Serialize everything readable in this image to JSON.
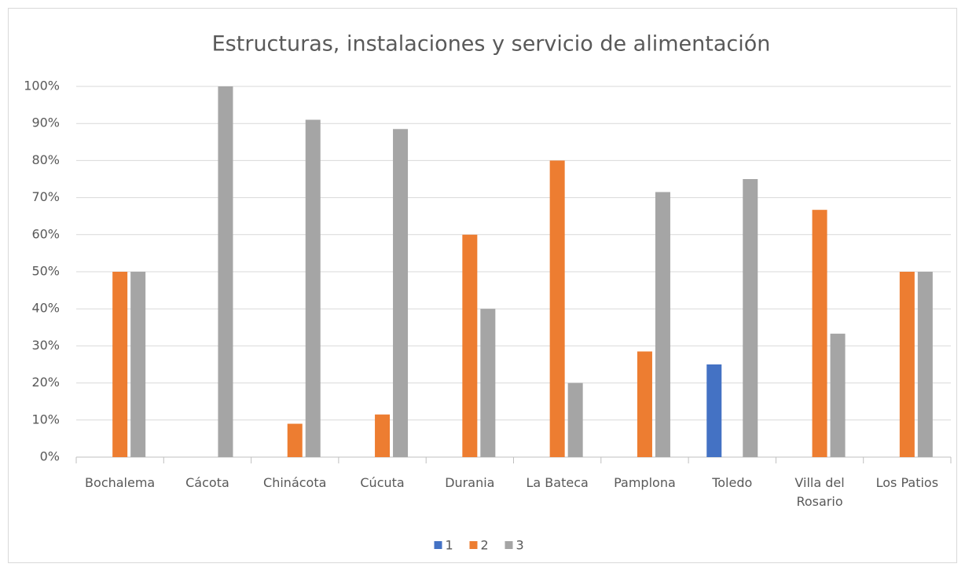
{
  "chart_data": {
    "type": "bar",
    "title": "Estructuras, instalaciones y servicio de alimentación",
    "categories": [
      "Bochalema",
      "Cácota",
      "Chinácota",
      "Cúcuta",
      "Durania",
      "La Bateca",
      "Pamplona",
      "Toledo",
      "Villa del Rosario",
      "Los Patios"
    ],
    "series": [
      {
        "name": "1",
        "color": "#4472c4",
        "values": [
          0,
          0,
          0,
          0,
          0,
          0,
          0,
          25,
          0,
          0
        ]
      },
      {
        "name": "2",
        "color": "#ed7d31",
        "values": [
          50,
          0,
          9,
          11.5,
          60,
          80,
          28.5,
          0,
          66.7,
          50
        ]
      },
      {
        "name": "3",
        "color": "#a5a5a5",
        "values": [
          50,
          100,
          91,
          88.5,
          40,
          20,
          71.5,
          75,
          33.3,
          50
        ]
      }
    ],
    "ylim": [
      0,
      100
    ],
    "yticks": [
      {
        "value": 0,
        "label": "0%"
      },
      {
        "value": 10,
        "label": "10%"
      },
      {
        "value": 20,
        "label": "20%"
      },
      {
        "value": 30,
        "label": "30%"
      },
      {
        "value": 40,
        "label": "40%"
      },
      {
        "value": 50,
        "label": "50%"
      },
      {
        "value": 60,
        "label": "60%"
      },
      {
        "value": 70,
        "label": "70%"
      },
      {
        "value": 80,
        "label": "80%"
      },
      {
        "value": 90,
        "label": "90%"
      },
      {
        "value": 100,
        "label": "100%"
      }
    ],
    "grid": true,
    "legend": "bottom"
  }
}
